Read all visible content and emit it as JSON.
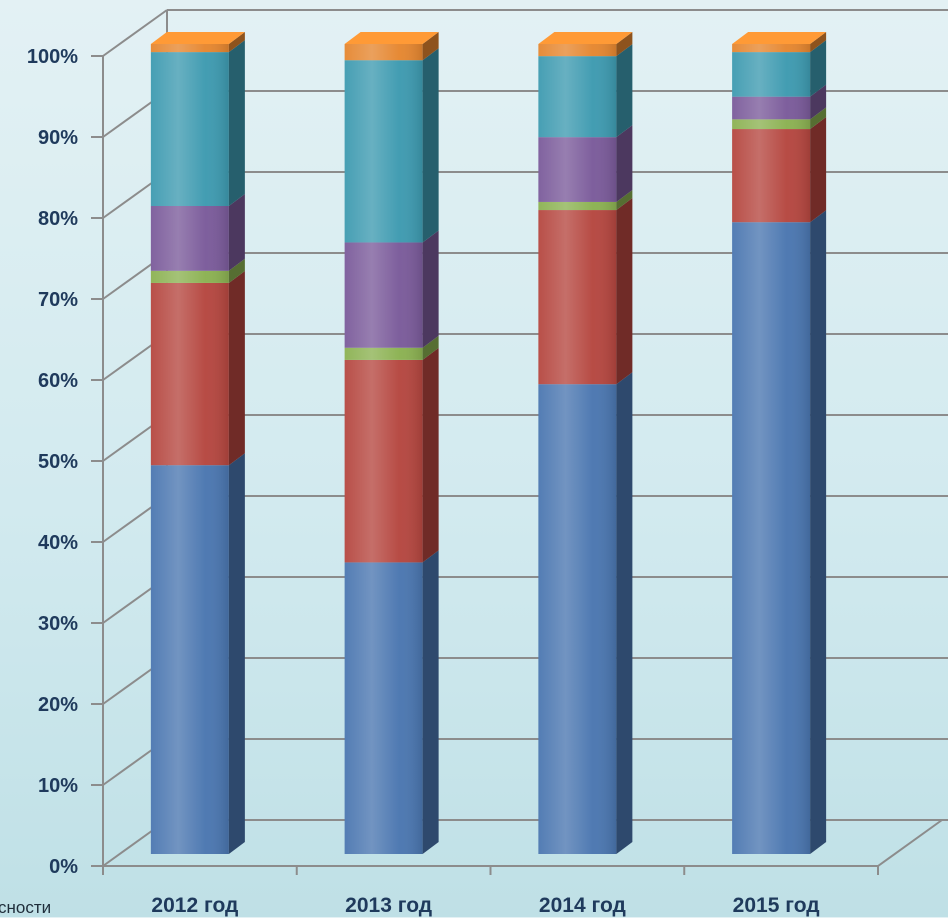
{
  "chart_data": {
    "type": "bar",
    "stacked": true,
    "percent_stacked": true,
    "three_d": true,
    "categories": [
      "2012 год",
      "2013 год",
      "2014 год",
      "2015 год"
    ],
    "y_ticks": [
      "0%",
      "10%",
      "20%",
      "30%",
      "40%",
      "50%",
      "60%",
      "70%",
      "80%",
      "90%",
      "100%"
    ],
    "ylim": [
      0,
      100
    ],
    "grid": true,
    "legend": "none",
    "series": [
      {
        "color": "#4a76b0",
        "values": [
          48,
          36,
          58,
          78
        ]
      },
      {
        "color": "#b5463f",
        "values": [
          22.5,
          25,
          21.5,
          11.5
        ]
      },
      {
        "color": "#8bb151",
        "values": [
          1.5,
          1.5,
          1,
          1.2
        ]
      },
      {
        "color": "#7a5a9a",
        "values": [
          8,
          13,
          8,
          2.8
        ]
      },
      {
        "color": "#3d9ab0",
        "values": [
          19,
          22.5,
          10,
          5.5
        ]
      },
      {
        "color": "#e5862f",
        "values": [
          1,
          2,
          1.5,
          1
        ]
      }
    ]
  },
  "corner_text": "сности"
}
